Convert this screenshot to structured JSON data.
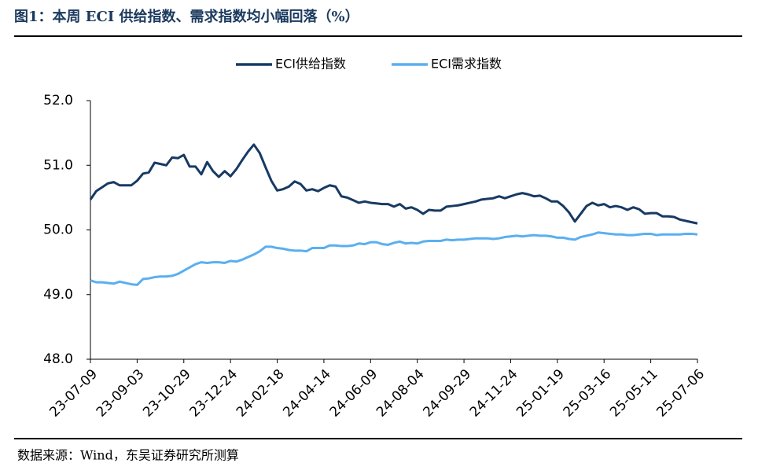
{
  "chart_data": {
    "type": "line",
    "title": "图1：本周 ECI 供给指数、需求指数均小幅回落（%）",
    "source": "数据来源：Wind，东吴证券研究所测算",
    "categories": [
      "23-07-09",
      null,
      null,
      null,
      null,
      null,
      null,
      null,
      "23-09-03",
      null,
      null,
      null,
      null,
      null,
      null,
      null,
      "23-10-29",
      null,
      null,
      null,
      null,
      null,
      null,
      null,
      "23-12-24",
      null,
      null,
      null,
      null,
      null,
      null,
      null,
      "24-02-18",
      null,
      null,
      null,
      null,
      null,
      null,
      null,
      "24-04-14",
      null,
      null,
      null,
      null,
      null,
      null,
      null,
      "24-06-09",
      null,
      null,
      null,
      null,
      null,
      null,
      null,
      "24-08-04",
      null,
      null,
      null,
      null,
      null,
      null,
      null,
      "24-09-29",
      null,
      null,
      null,
      null,
      null,
      null,
      null,
      "24-11-24",
      null,
      null,
      null,
      null,
      null,
      null,
      null,
      "25-01-19",
      null,
      null,
      null,
      null,
      null,
      null,
      null,
      "25-03-16",
      null,
      null,
      null,
      null,
      null,
      null,
      null,
      "25-05-11",
      null,
      null,
      null,
      null,
      null,
      null,
      null,
      "25-07-06"
    ],
    "series": [
      {
        "name": "ECI供给指数",
        "color": "#173a63",
        "values": [
          50.47,
          50.6,
          50.66,
          50.72,
          50.74,
          50.69,
          50.69,
          50.69,
          50.76,
          50.87,
          50.89,
          51.04,
          51.02,
          51.0,
          51.12,
          51.11,
          51.16,
          50.98,
          50.98,
          50.86,
          51.05,
          50.91,
          50.82,
          50.91,
          50.83,
          50.94,
          51.08,
          51.21,
          51.32,
          51.19,
          50.97,
          50.76,
          50.61,
          50.63,
          50.67,
          50.75,
          50.71,
          50.61,
          50.63,
          50.6,
          50.65,
          50.69,
          50.67,
          50.52,
          50.5,
          50.46,
          50.42,
          50.44,
          50.42,
          50.41,
          50.4,
          50.4,
          50.36,
          50.4,
          50.33,
          50.35,
          50.31,
          50.25,
          50.31,
          50.3,
          50.3,
          50.36,
          50.37,
          50.38,
          50.4,
          50.42,
          50.44,
          50.47,
          50.48,
          50.49,
          50.52,
          50.49,
          50.52,
          50.55,
          50.57,
          50.55,
          50.52,
          50.53,
          50.49,
          50.44,
          50.44,
          50.37,
          50.27,
          50.13,
          50.25,
          50.37,
          50.42,
          50.38,
          50.4,
          50.35,
          50.37,
          50.35,
          50.31,
          50.35,
          50.32,
          50.25,
          50.26,
          50.26,
          50.21,
          50.21,
          50.2,
          50.16,
          50.14,
          50.12,
          50.1
        ]
      },
      {
        "name": "ECI需求指数",
        "color": "#5aaff0",
        "values": [
          49.22,
          49.19,
          49.19,
          49.18,
          49.17,
          49.2,
          49.18,
          49.16,
          49.15,
          49.24,
          49.25,
          49.27,
          49.28,
          49.28,
          49.29,
          49.32,
          49.37,
          49.42,
          49.47,
          49.5,
          49.49,
          49.5,
          49.5,
          49.49,
          49.52,
          49.51,
          49.54,
          49.58,
          49.62,
          49.67,
          49.74,
          49.74,
          49.72,
          49.71,
          49.69,
          49.68,
          49.68,
          49.67,
          49.72,
          49.72,
          49.72,
          49.76,
          49.76,
          49.75,
          49.75,
          49.76,
          49.79,
          49.78,
          49.81,
          49.81,
          49.78,
          49.77,
          49.8,
          49.82,
          49.79,
          49.8,
          49.79,
          49.82,
          49.83,
          49.83,
          49.83,
          49.85,
          49.84,
          49.85,
          49.85,
          49.86,
          49.87,
          49.87,
          49.87,
          49.86,
          49.87,
          49.89,
          49.9,
          49.91,
          49.9,
          49.91,
          49.92,
          49.91,
          49.91,
          49.9,
          49.88,
          49.88,
          49.86,
          49.85,
          49.89,
          49.91,
          49.93,
          49.96,
          49.95,
          49.94,
          49.93,
          49.93,
          49.92,
          49.92,
          49.93,
          49.94,
          49.94,
          49.92,
          49.93,
          49.93,
          49.93,
          49.93,
          49.94,
          49.94,
          49.93
        ]
      }
    ],
    "ylim": [
      48,
      52
    ],
    "yticks": [
      {
        "value": 48,
        "label": "48.0"
      },
      {
        "value": 49,
        "label": "49.0"
      },
      {
        "value": 50,
        "label": "50.0"
      },
      {
        "value": 51,
        "label": "51.0"
      },
      {
        "value": 52,
        "label": "52.0"
      }
    ],
    "legend": "top"
  }
}
